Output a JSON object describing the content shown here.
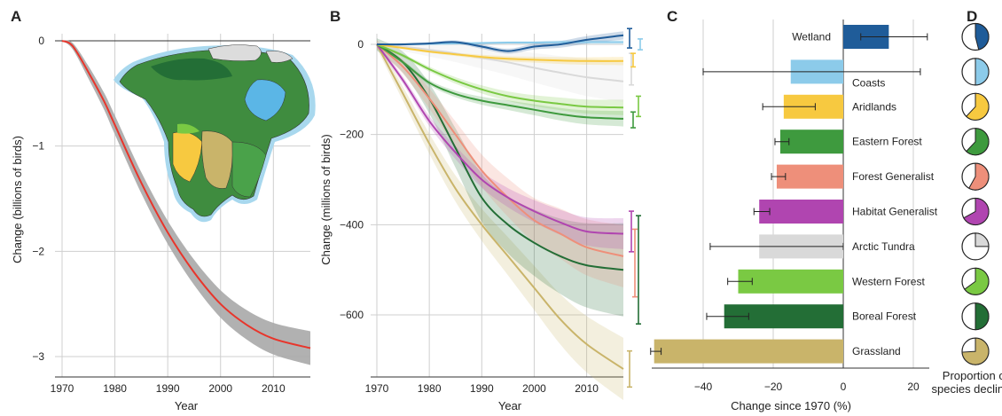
{
  "panel_letters": {
    "a": "A",
    "b": "B",
    "c": "C",
    "d": "D"
  },
  "colors": {
    "wetland": "#1f5c99",
    "coasts": "#8ccbea",
    "aridlands": "#f7c940",
    "eastern_forest": "#3e9a3e",
    "forest_generalist": "#ee8f7a",
    "habitat_generalist": "#b045b0",
    "arctic_tundra": "#d9d9d9",
    "western_forest": "#7ac943",
    "boreal_forest": "#236e36",
    "grassland": "#c9b46a",
    "total_line": "#e8352b",
    "total_band": "#a9a9a9"
  },
  "chart_data": [
    {
      "id": "A",
      "type": "line",
      "xlabel": "Year",
      "ylabel": "Change (billions of birds)",
      "xlim": [
        1970,
        2017
      ],
      "ylim": [
        -3.1,
        0.05
      ],
      "xticks": [
        "1970",
        "1980",
        "1990",
        "2000",
        "2010"
      ],
      "yticks": [
        "0",
        "−1",
        "−2",
        "−3"
      ],
      "ytick_values": [
        0,
        -1,
        -2,
        -3
      ],
      "grid": true,
      "inset_map": "North America habitat map",
      "series": [
        {
          "x": [
            1970,
            1972,
            1975,
            1978,
            1980,
            1985,
            1990,
            1995,
            2000,
            2005,
            2010,
            2017
          ],
          "y": [
            0,
            -0.05,
            -0.3,
            -0.58,
            -0.8,
            -1.35,
            -1.82,
            -2.2,
            -2.5,
            -2.7,
            -2.83,
            -2.92
          ],
          "band": [
            0.0,
            0.03,
            0.06,
            0.08,
            0.09,
            0.1,
            0.11,
            0.12,
            0.13,
            0.14,
            0.15,
            0.16
          ]
        }
      ]
    },
    {
      "id": "B",
      "type": "line",
      "xlabel": "Year",
      "ylabel": "Change (millions of birds)",
      "xlim": [
        1970,
        2017
      ],
      "ylim": [
        -740,
        60
      ],
      "xticks": [
        "1970",
        "1980",
        "1990",
        "2000",
        "2010"
      ],
      "yticks": [
        "0",
        "−200",
        "−400",
        "−600"
      ],
      "ytick_values": [
        0,
        -200,
        -400,
        -600
      ],
      "grid": true,
      "x": [
        1970,
        1975,
        1980,
        1985,
        1990,
        1995,
        2000,
        2005,
        2010,
        2017
      ],
      "series": [
        {
          "key": "grassland",
          "y": [
            0,
            -110,
            -220,
            -320,
            -400,
            -470,
            -540,
            -610,
            -665,
            -720
          ],
          "band": 60,
          "ci": [
            -680,
            -760
          ]
        },
        {
          "key": "boreal_forest",
          "y": [
            0,
            -40,
            -120,
            -230,
            -340,
            -400,
            -440,
            -470,
            -490,
            -500
          ],
          "band": 90,
          "ci": [
            -380,
            -620
          ]
        },
        {
          "key": "forest_generalist",
          "y": [
            0,
            -50,
            -120,
            -200,
            -280,
            -340,
            -390,
            -420,
            -450,
            -470
          ],
          "band": 60,
          "ci": [
            -410,
            -560
          ]
        },
        {
          "key": "habitat_generalist",
          "y": [
            0,
            -80,
            -170,
            -240,
            -300,
            -340,
            -370,
            -395,
            -415,
            -420
          ],
          "band": 30,
          "ci": [
            -370,
            -460
          ]
        },
        {
          "key": "eastern_forest",
          "y": [
            0,
            -40,
            -85,
            -110,
            -125,
            -135,
            -145,
            -155,
            -162,
            -165
          ],
          "band": 15,
          "ci": [
            -150,
            -185
          ]
        },
        {
          "key": "western_forest",
          "y": [
            0,
            -25,
            -55,
            -80,
            -100,
            -115,
            -125,
            -132,
            -138,
            -140
          ],
          "band": 15,
          "ci": [
            -115,
            -160
          ]
        },
        {
          "key": "arctic_tundra",
          "y": [
            0,
            -5,
            -12,
            -20,
            -30,
            -40,
            -52,
            -63,
            -73,
            -82
          ],
          "band": 40,
          "ci": [
            -20,
            -90
          ]
        },
        {
          "key": "aridlands",
          "y": [
            0,
            -8,
            -16,
            -22,
            -28,
            -32,
            -34,
            -36,
            -37,
            -37
          ],
          "band": 8,
          "ci": [
            -20,
            -50
          ]
        },
        {
          "key": "coasts",
          "y": [
            0,
            0,
            1,
            2,
            3,
            4,
            4,
            5,
            5,
            5
          ],
          "band": 4,
          "ci": [
            -12,
            12
          ]
        },
        {
          "key": "wetland",
          "y": [
            0,
            0,
            2,
            5,
            -5,
            -15,
            -5,
            0,
            10,
            20
          ],
          "band": 8,
          "ci": [
            -8,
            35
          ]
        }
      ]
    },
    {
      "id": "C",
      "type": "bar",
      "orientation": "horizontal",
      "xlabel": "Change since 1970 (%)",
      "xlim": [
        -56,
        25
      ],
      "xticks": [
        "−40",
        "−20",
        "0",
        "20"
      ],
      "xtick_values": [
        -40,
        -20,
        0,
        20
      ],
      "categories": [
        "Wetland",
        "Coasts",
        "Aridlands",
        "Eastern Forest",
        "Forest Generalist",
        "Habitat Generalist",
        "Arctic Tundra",
        "Western Forest",
        "Boreal Forest",
        "Grassland"
      ],
      "keys": [
        "wetland",
        "coasts",
        "aridlands",
        "eastern_forest",
        "forest_generalist",
        "habitat_generalist",
        "arctic_tundra",
        "western_forest",
        "boreal_forest",
        "grassland"
      ],
      "values": [
        13,
        -15,
        -17,
        -18,
        -19,
        -24,
        -24,
        -30,
        -34,
        -54
      ],
      "err_low": [
        5,
        -40,
        -23,
        -19.5,
        -20.5,
        -25.5,
        -38,
        -33,
        -39,
        -55
      ],
      "err_high": [
        24,
        22,
        -8,
        -15.5,
        -16.5,
        -21,
        0,
        -26,
        -27,
        -52
      ]
    },
    {
      "id": "D",
      "type": "pie",
      "title": "Proportion of species declining",
      "keys": [
        "wetland",
        "coasts",
        "aridlands",
        "eastern_forest",
        "forest_generalist",
        "habitat_generalist",
        "arctic_tundra",
        "western_forest",
        "boreal_forest",
        "grassland"
      ],
      "fraction_declining": [
        0.46,
        0.5,
        0.62,
        0.62,
        0.58,
        0.67,
        0.25,
        0.65,
        0.5,
        0.74
      ]
    }
  ]
}
